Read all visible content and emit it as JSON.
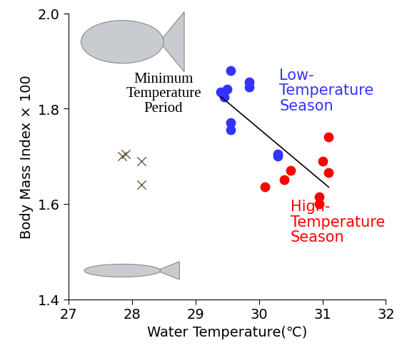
{
  "chart_data": {
    "type": "scatter",
    "x_label": "Water Temperature(℃)",
    "y_label": "Body Mass Index × 100",
    "xlim": [
      27,
      32
    ],
    "ylim": [
      1.4,
      2.0
    ],
    "xticks": [
      27,
      28,
      29,
      30,
      31,
      32
    ],
    "yticks": [
      1.4,
      1.6,
      1.8,
      2.0
    ],
    "grid": false,
    "series": [
      {
        "type": "scatter",
        "marker": "x",
        "color": "#6b5a3e",
        "x": [
          27.85,
          27.9,
          28.15,
          28.15
        ],
        "values": [
          1.7,
          1.705,
          1.69,
          1.64
        ]
      },
      {
        "type": "scatter",
        "marker": "o",
        "color": "#3333ff",
        "x": [
          29.4,
          29.45,
          29.5,
          29.55,
          29.55,
          29.55,
          29.85,
          29.85,
          30.3,
          30.3
        ],
        "values": [
          1.835,
          1.825,
          1.84,
          1.88,
          1.77,
          1.755,
          1.855,
          1.845,
          1.705,
          1.7
        ]
      },
      {
        "type": "scatter",
        "marker": "o",
        "color": "#ff0000",
        "x": [
          30.1,
          30.4,
          30.5,
          30.95,
          30.95,
          31.0,
          31.1,
          31.1
        ],
        "values": [
          1.635,
          1.65,
          1.67,
          1.615,
          1.6,
          1.69,
          1.665,
          1.74
        ]
      },
      {
        "type": "line",
        "line_style": "solid",
        "color": "#000000",
        "x": [
          29.4,
          31.1
        ],
        "values": [
          1.825,
          1.635
        ]
      }
    ],
    "annotations": [
      {
        "text": "Minimum\nTemperature\nPeriod",
        "color": "#000000"
      },
      {
        "text": "Low-\nTemperature\nSeason",
        "color": "#3333ff"
      },
      {
        "text": "High-\nTemperature\nSeason",
        "color": "#ff0000"
      }
    ]
  }
}
